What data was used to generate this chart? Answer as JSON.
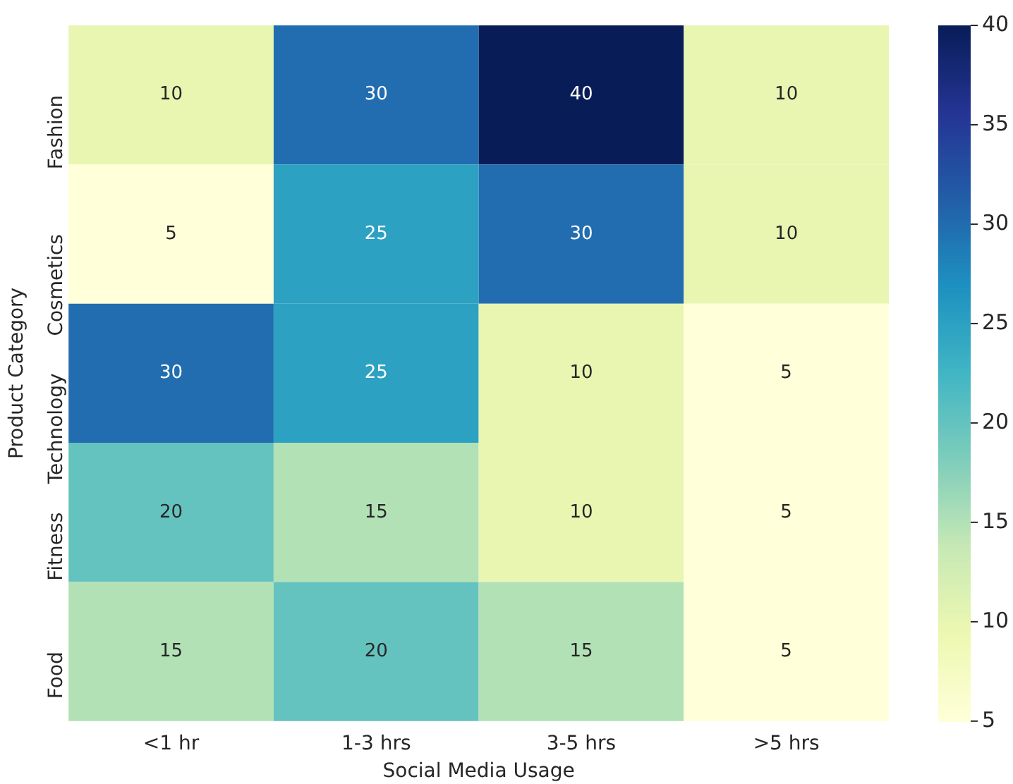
{
  "chart_data": {
    "type": "heatmap",
    "xlabel": "Social Media Usage",
    "ylabel": "Product Category",
    "categories": [
      "<1 hr",
      "1-3 hrs",
      "3-5 hrs",
      ">5 hrs"
    ],
    "y_categories": [
      "Fashion",
      "Cosmetics",
      "Technology",
      "Fitness",
      "Food"
    ],
    "cells": [
      [
        10,
        30,
        40,
        10
      ],
      [
        5,
        25,
        30,
        10
      ],
      [
        30,
        25,
        10,
        5
      ],
      [
        20,
        15,
        10,
        5
      ],
      [
        15,
        20,
        15,
        5
      ]
    ],
    "clim": [
      5,
      40
    ],
    "cticks": [
      5,
      10,
      15,
      20,
      25,
      30,
      35,
      40
    ],
    "data_labels": true
  }
}
